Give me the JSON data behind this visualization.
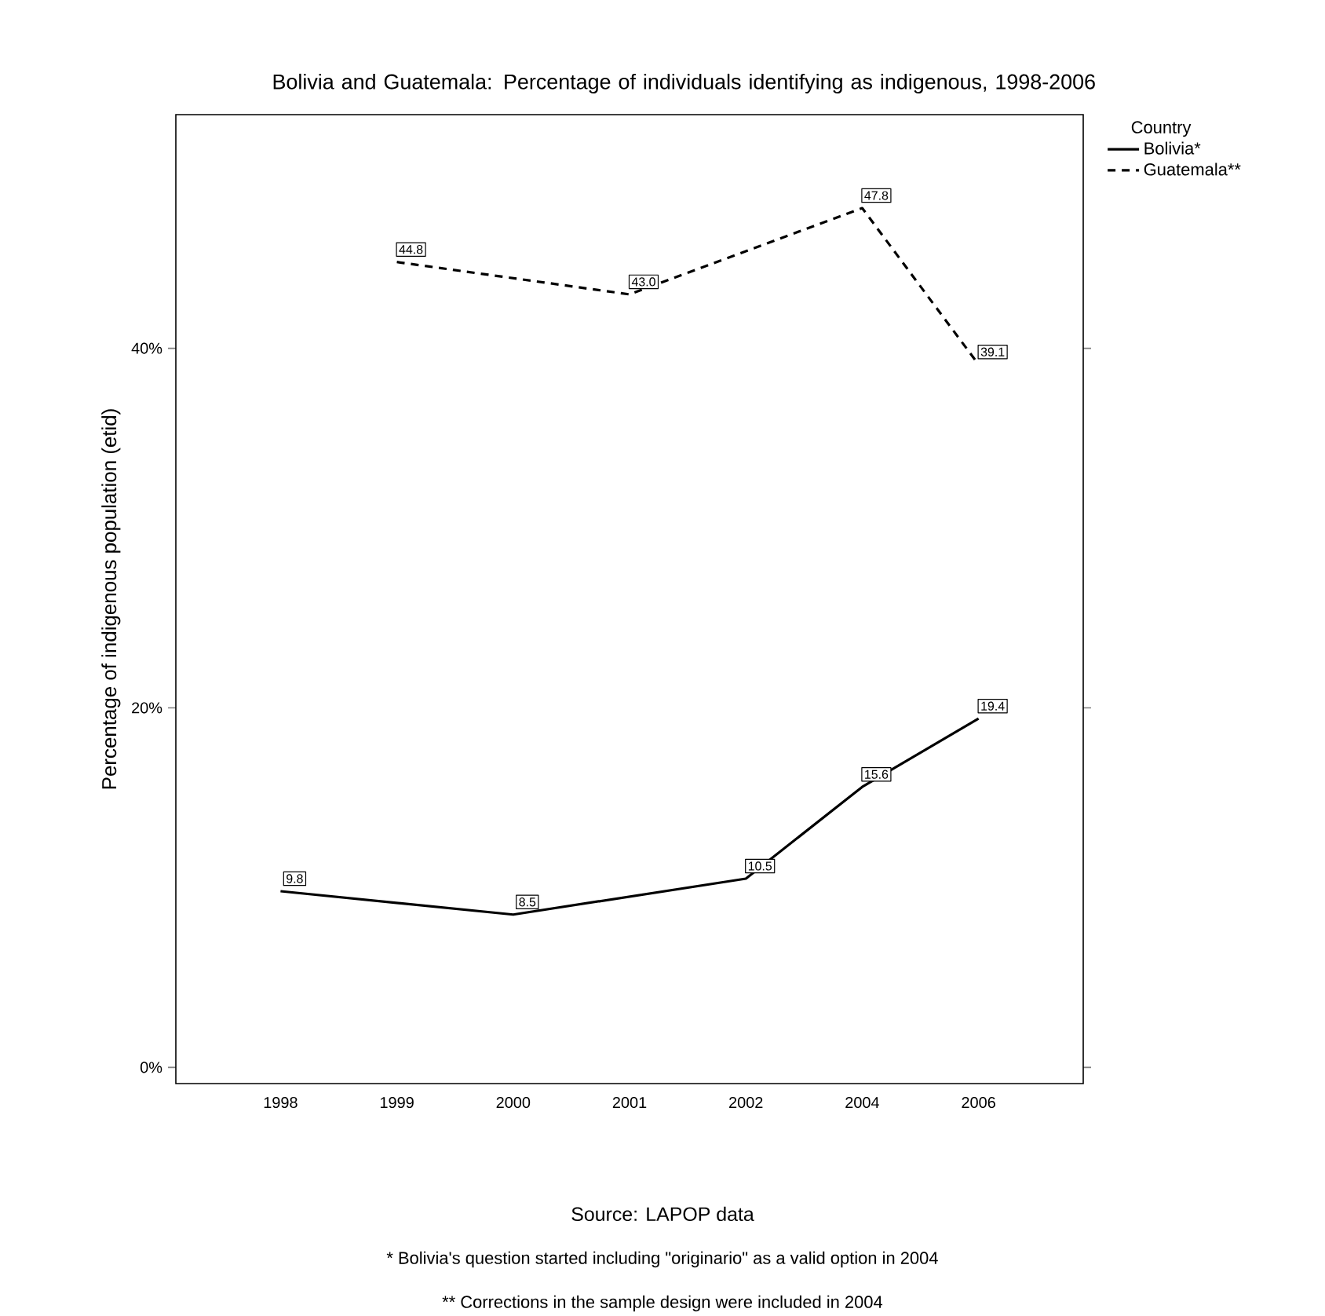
{
  "chart_data": {
    "type": "line",
    "title": "Bolivia and Guatemala:  Percentage of individuals identifying as indigenous, 1998-2006",
    "ylabel": "Percentage of indigenous population (etid)",
    "legend_title": "Country",
    "categories": [
      "1998",
      "1999",
      "2000",
      "2001",
      "2002",
      "2004",
      "2006"
    ],
    "series": [
      {
        "name": "Bolivia*",
        "color": "#000000",
        "line_style": "solid",
        "values": [
          9.8,
          null,
          8.5,
          null,
          10.5,
          15.6,
          19.4
        ],
        "value_labels": [
          "9.8",
          null,
          "8.5",
          null,
          "10.5",
          "15.6",
          "19.4"
        ]
      },
      {
        "name": "Guatemala**",
        "color": "#000000",
        "line_style": "dashed",
        "values": [
          null,
          44.8,
          null,
          43.0,
          null,
          47.8,
          39.1
        ],
        "value_labels": [
          null,
          "44.8",
          null,
          "43.0",
          null,
          "47.8",
          "39.1"
        ]
      }
    ],
    "ylim": [
      -0.9,
      53
    ],
    "yticks": [
      {
        "value": 0,
        "label": "0%"
      },
      {
        "value": 20,
        "label": "20%"
      },
      {
        "value": 40,
        "label": "40%"
      }
    ],
    "legend": "right",
    "marker": "none",
    "grid": false,
    "annotations": [
      "Source: LAPOP data",
      "* Bolivia's question started including \"originario\" as a valid option in 2004",
      "** Corrections in the sample design were included in 2004"
    ]
  }
}
